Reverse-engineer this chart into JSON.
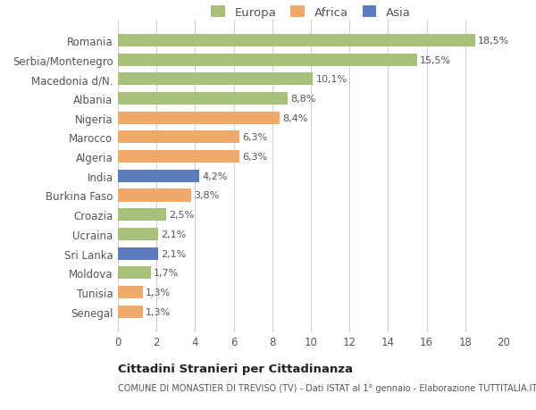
{
  "countries": [
    "Romania",
    "Serbia/Montenegro",
    "Macedonia d/N.",
    "Albania",
    "Nigeria",
    "Marocco",
    "Algeria",
    "India",
    "Burkina Faso",
    "Croazia",
    "Ucraina",
    "Sri Lanka",
    "Moldova",
    "Tunisia",
    "Senegal"
  ],
  "values": [
    18.5,
    15.5,
    10.1,
    8.8,
    8.4,
    6.3,
    6.3,
    4.2,
    3.8,
    2.5,
    2.1,
    2.1,
    1.7,
    1.3,
    1.3
  ],
  "labels": [
    "18,5%",
    "15,5%",
    "10,1%",
    "8,8%",
    "8,4%",
    "6,3%",
    "6,3%",
    "4,2%",
    "3,8%",
    "2,5%",
    "2,1%",
    "2,1%",
    "1,7%",
    "1,3%",
    "1,3%"
  ],
  "colors": [
    "#a8c17a",
    "#a8c17a",
    "#a8c17a",
    "#a8c17a",
    "#f0a96a",
    "#f0a96a",
    "#f0a96a",
    "#5b7cbf",
    "#f0a96a",
    "#a8c17a",
    "#a8c17a",
    "#5b7cbf",
    "#a8c17a",
    "#f0a96a",
    "#f0a96a"
  ],
  "legend_labels": [
    "Europa",
    "Africa",
    "Asia"
  ],
  "legend_colors": [
    "#a8c17a",
    "#f0a96a",
    "#5b7cbf"
  ],
  "xlim": [
    0,
    20
  ],
  "xticks": [
    0,
    2,
    4,
    6,
    8,
    10,
    12,
    14,
    16,
    18,
    20
  ],
  "title": "Cittadini Stranieri per Cittadinanza",
  "subtitle": "COMUNE DI MONASTIER DI TREVISO (TV) - Dati ISTAT al 1° gennaio - Elaborazione TUTTITALIA.IT",
  "background_color": "#ffffff",
  "grid_color": "#d0d0d0"
}
